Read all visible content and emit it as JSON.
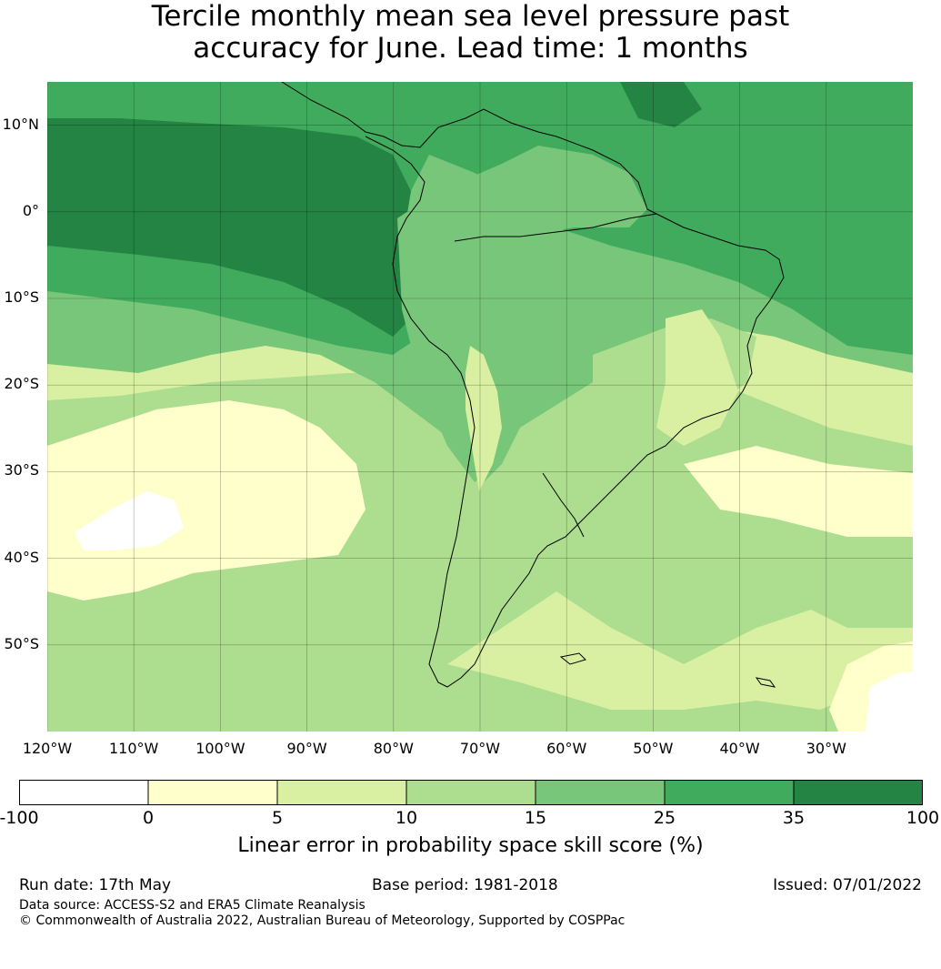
{
  "title": {
    "line1": "Tercile monthly mean sea level pressure past",
    "line2": "accuracy for June. Lead time: 1 months"
  },
  "map": {
    "lat_labels": [
      {
        "text": "10°N",
        "lat": 10
      },
      {
        "text": "0°",
        "lat": 0
      },
      {
        "text": "10°S",
        "lat": -10
      },
      {
        "text": "20°S",
        "lat": -20
      },
      {
        "text": "30°S",
        "lat": -30
      },
      {
        "text": "40°S",
        "lat": -40
      },
      {
        "text": "50°S",
        "lat": -50
      }
    ],
    "lon_labels": [
      {
        "text": "120°W",
        "lon": -120
      },
      {
        "text": "110°W",
        "lon": -110
      },
      {
        "text": "100°W",
        "lon": -100
      },
      {
        "text": "90°W",
        "lon": -90
      },
      {
        "text": "80°W",
        "lon": -80
      },
      {
        "text": "70°W",
        "lon": -70
      },
      {
        "text": "60°W",
        "lon": -60
      },
      {
        "text": "50°W",
        "lon": -50
      },
      {
        "text": "40°W",
        "lon": -40
      },
      {
        "text": "30°W",
        "lon": -30
      }
    ],
    "lon_range": [
      -120,
      -20
    ],
    "lat_range": [
      -60,
      15
    ],
    "grid": true
  },
  "colorbar": {
    "ticks": [
      "-100",
      "0",
      "5",
      "10",
      "15",
      "25",
      "35",
      "100"
    ],
    "colors": [
      "#ffffff",
      "#ffffcc",
      "#d9f0a3",
      "#addd8e",
      "#78c679",
      "#41ab5d",
      "#238443"
    ],
    "label": "Linear error in probability space skill score (%)"
  },
  "colors": {
    "white": "#ffffff",
    "c0_5": "#ffffcc",
    "c5_10": "#d9f0a3",
    "c10_15": "#addd8e",
    "c15_25": "#78c679",
    "c25_35": "#41ab5d",
    "c35_100": "#238443"
  },
  "footer": {
    "run_date": "Run date: 17th May",
    "base_period": "Base period: 1981-2018",
    "issued": "Issued: 07/01/2022",
    "data_source": "Data source: ACCESS-S2 and ERA5 Climate Reanalysis",
    "copyright": "© Commonwealth of Australia 2022, Australian Bureau of Meteorology, Supported by COSPPac"
  }
}
